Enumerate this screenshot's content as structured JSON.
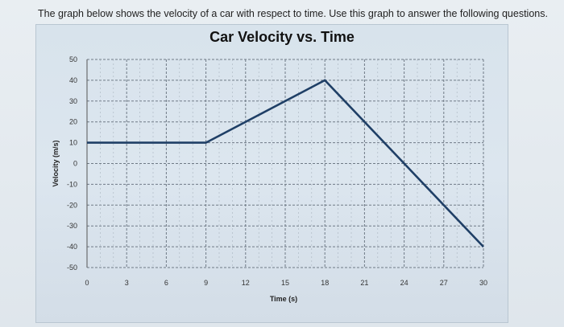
{
  "instruction": "The graph below shows the velocity of a car with respect to time. Use this graph to answer the following questions.",
  "chart_data": {
    "type": "line",
    "title": "Car Velocity vs. Time",
    "xlabel": "Time (s)",
    "ylabel": "Velocity (m/s)",
    "xlim": [
      0,
      30
    ],
    "ylim": [
      -50,
      50
    ],
    "x_ticks": [
      0,
      3,
      6,
      9,
      12,
      15,
      18,
      21,
      24,
      27,
      30
    ],
    "y_ticks": [
      50,
      40,
      30,
      20,
      10,
      0,
      -10,
      -20,
      -30,
      -40,
      -50
    ],
    "grid": true,
    "series": [
      {
        "x": [
          0,
          9,
          18,
          30
        ],
        "y": [
          10,
          10,
          40,
          -40
        ],
        "color": "#1f3f66"
      }
    ]
  }
}
